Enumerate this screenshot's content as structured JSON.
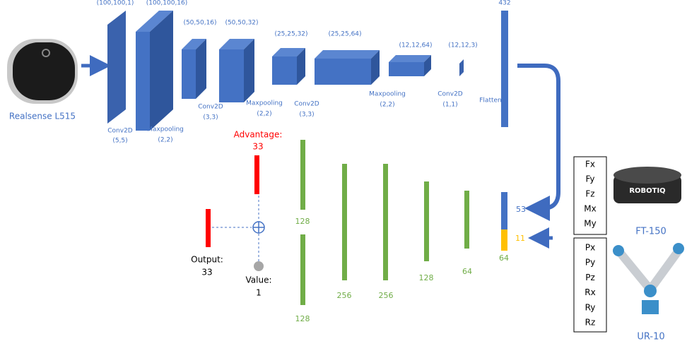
{
  "camera": {
    "label": "Realsense L515"
  },
  "cnn": {
    "shapes": [
      "(100,100,1)",
      "(100,100,16)",
      "(50,50,16)",
      "(50,50,32)",
      "(25,25,32)",
      "(25,25,64)",
      "(12,12,64)",
      "(12,12,3)"
    ],
    "layers": [
      {
        "name": "Conv2D",
        "param": "(5,5)"
      },
      {
        "name": "Maxpooling",
        "param": "(2,2)"
      },
      {
        "name": "Conv2D",
        "param": "(3,3)"
      },
      {
        "name": "Maxpooling",
        "param": "(2,2)"
      },
      {
        "name": "Conv2D",
        "param": "(3,3)"
      },
      {
        "name": "Maxpooling",
        "param": "(2,2)"
      },
      {
        "name": "Conv2D",
        "param": "(1,1)"
      }
    ],
    "flatten": {
      "name": "Flatten",
      "size": 432
    }
  },
  "dueling": {
    "advantage": {
      "label": "Advantage:",
      "value": 33
    },
    "value": {
      "label": "Value:",
      "value": 1
    },
    "output": {
      "label": "Output:",
      "value": 33
    }
  },
  "dense": [
    128,
    128,
    256,
    256,
    128,
    64
  ],
  "input_layer": {
    "size": 64,
    "parts": [
      53,
      11
    ]
  },
  "sensors": {
    "force": {
      "name": "FT-150",
      "brand": "ROBOTIQ",
      "labels": [
        "Fx",
        "Fy",
        "Fz",
        "Mx",
        "My"
      ]
    },
    "robot": {
      "name": "UR-10",
      "labels": [
        "Px",
        "Py",
        "Pz",
        "Rx",
        "Ry",
        "Rz"
      ]
    }
  }
}
